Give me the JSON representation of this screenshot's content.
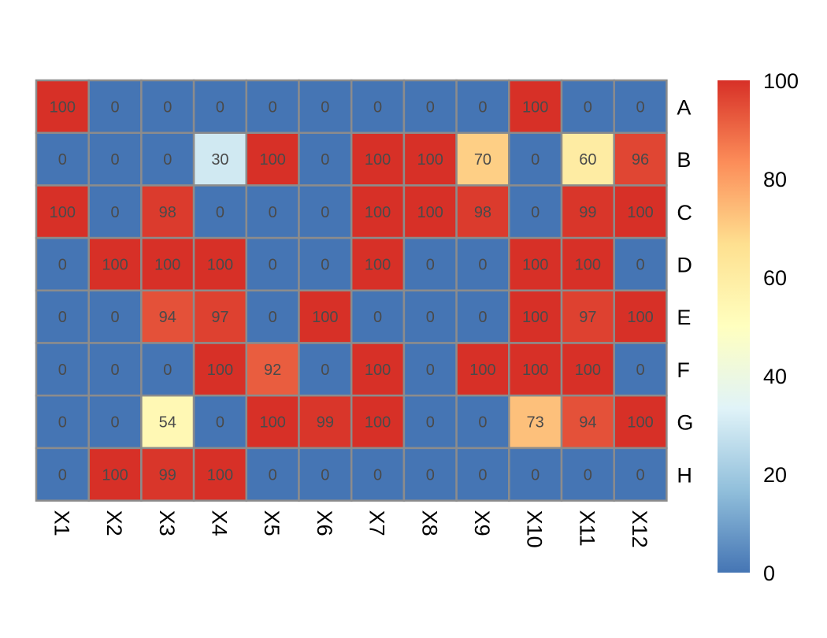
{
  "chart_data": {
    "type": "heatmap",
    "title": "",
    "xlabel": "",
    "ylabel": "",
    "columns": [
      "X1",
      "X2",
      "X3",
      "X4",
      "X5",
      "X6",
      "X7",
      "X8",
      "X9",
      "X10",
      "X11",
      "X12"
    ],
    "rows": [
      "A",
      "B",
      "C",
      "D",
      "E",
      "F",
      "G",
      "H"
    ],
    "values": [
      [
        100,
        0,
        0,
        0,
        0,
        0,
        0,
        0,
        0,
        100,
        0,
        0
      ],
      [
        0,
        0,
        0,
        30,
        100,
        0,
        100,
        100,
        70,
        0,
        60,
        96
      ],
      [
        100,
        0,
        98,
        0,
        0,
        0,
        100,
        100,
        98,
        0,
        99,
        100
      ],
      [
        0,
        100,
        100,
        100,
        0,
        0,
        100,
        0,
        0,
        100,
        100,
        0
      ],
      [
        0,
        0,
        94,
        97,
        0,
        100,
        0,
        0,
        0,
        100,
        97,
        100
      ],
      [
        0,
        0,
        0,
        100,
        92,
        0,
        100,
        0,
        100,
        100,
        100,
        0
      ],
      [
        0,
        0,
        54,
        0,
        100,
        99,
        100,
        0,
        0,
        73,
        94,
        100
      ],
      [
        0,
        100,
        99,
        100,
        0,
        0,
        0,
        0,
        0,
        0,
        0,
        0
      ]
    ],
    "value_range": [
      0,
      100
    ],
    "cell_labels": true,
    "legend": {
      "placement": "right",
      "ticks": [
        0,
        20,
        40,
        60,
        80,
        100
      ]
    },
    "colors": {
      "scale": [
        "#4575b4",
        "#91bfdb",
        "#e0f3f8",
        "#ffffbf",
        "#fee090",
        "#fc8d59",
        "#d73027"
      ],
      "cell_border": "#8c8c8c",
      "cell_text": "#4a4a4a"
    }
  }
}
